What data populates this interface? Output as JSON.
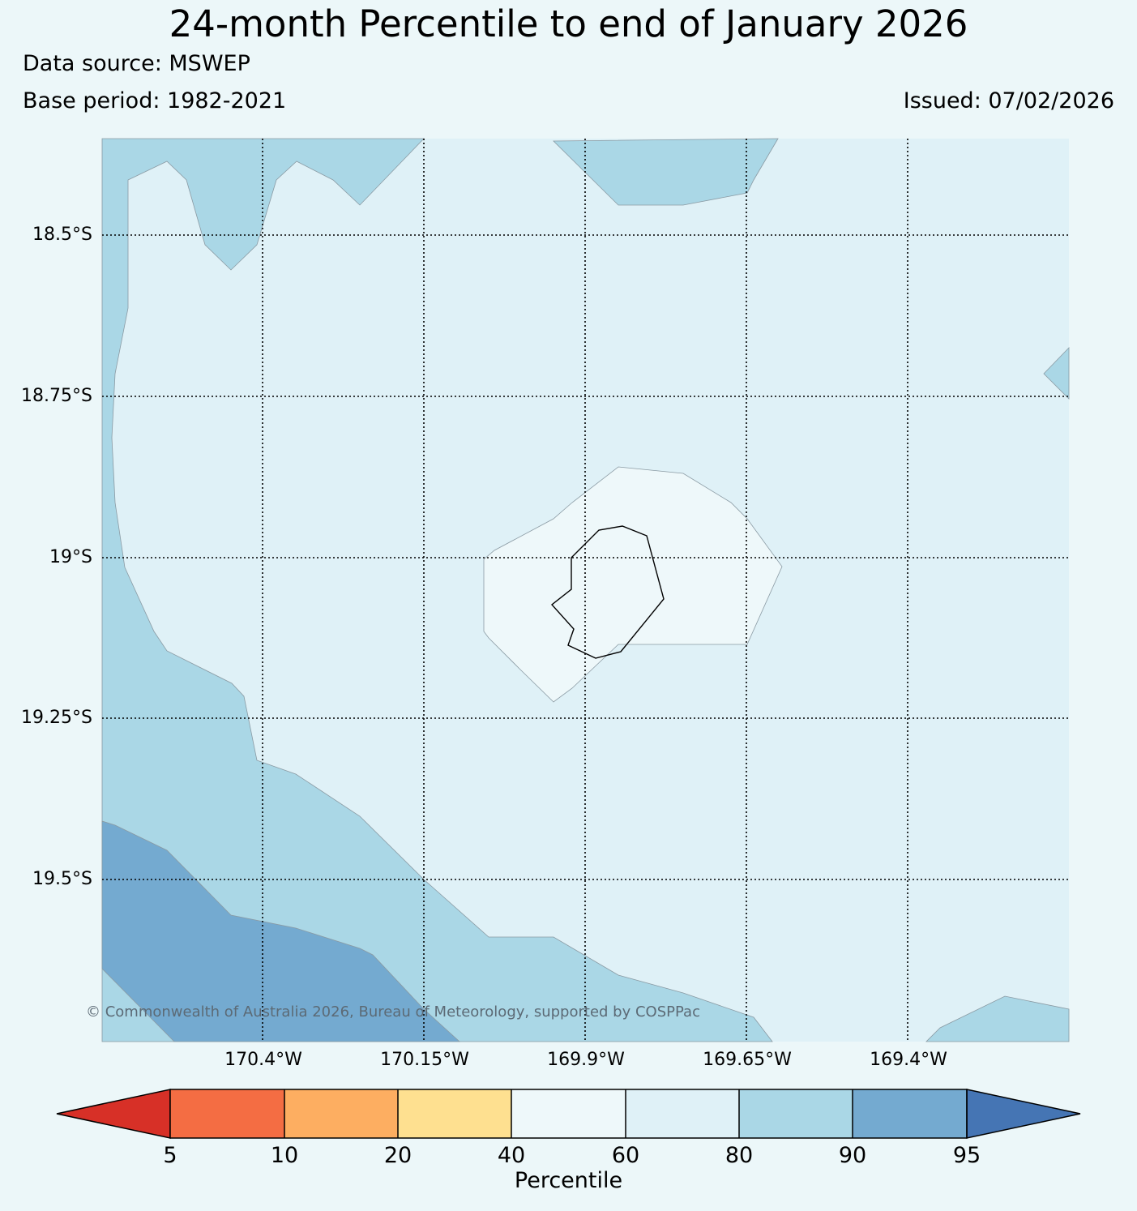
{
  "title": "24-month Percentile to end of January 2026",
  "data_source": "Data source: MSWEP",
  "base_period": "Base period: 1982-2021",
  "issued": "Issued: 07/02/2026",
  "copyright": "© Commonwealth of Australia 2026, Bureau of Meteorology, supported by COSPPac",
  "map": {
    "lat_labels": [
      "18.5°S",
      "18.75°S",
      "19°S",
      "19.25°S",
      "19.5°S"
    ],
    "lon_labels": [
      "170.4°W",
      "170.15°W",
      "169.9°W",
      "169.65°W",
      "169.4°W"
    ],
    "region_colors": {
      "band_40_60": "#eef8fa",
      "band_60_80": "#dff1f7",
      "band_80_90": "#aad7e6",
      "band_90_95": "#74aad0"
    }
  },
  "colorbar": {
    "title": "Percentile",
    "ticks": [
      "5",
      "10",
      "20",
      "40",
      "60",
      "80",
      "90",
      "95"
    ],
    "colors": [
      "#d73027",
      "#f46d43",
      "#fdae61",
      "#fee090",
      "#eef8fa",
      "#dff1f7",
      "#aad7e6",
      "#74aad0",
      "#4575b4"
    ]
  }
}
